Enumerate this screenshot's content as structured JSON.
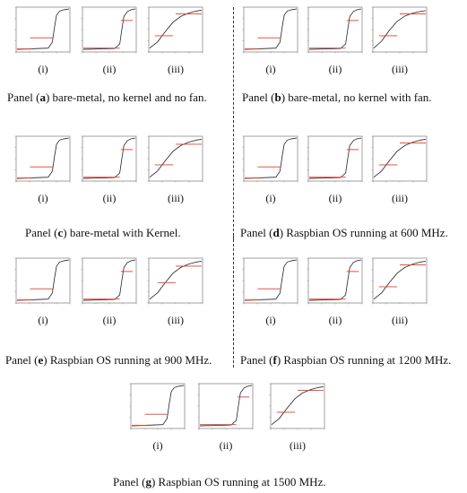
{
  "colors": {
    "curve": "#222222",
    "threshold": "#e23b2e",
    "frame": "#8a8a8a"
  },
  "sub_labels": [
    "(i)",
    "(ii)",
    "(iii)"
  ],
  "panels": [
    {
      "id": "a",
      "prefix": "Panel (",
      "letter": "a",
      "suffix": ") bare-metal, no kernel and no fan."
    },
    {
      "id": "b",
      "prefix": "Panel (",
      "letter": "b",
      "suffix": ") bare-metal, no kernel with fan."
    },
    {
      "id": "c",
      "prefix": "Panel (",
      "letter": "c",
      "suffix": ") bare-metal with Kernel."
    },
    {
      "id": "d",
      "prefix": "Panel (",
      "letter": "d",
      "suffix": ") Raspbian OS running at 600 MHz."
    },
    {
      "id": "e",
      "prefix": "Panel (",
      "letter": "e",
      "suffix": ") Raspbian OS running at 900 MHz."
    },
    {
      "id": "f",
      "prefix": "Panel (",
      "letter": "f",
      "suffix": ") Raspbian OS running at 1200 MHz."
    },
    {
      "id": "g",
      "prefix": "Panel (",
      "letter": "g",
      "suffix": ") Raspbian OS running at 1500 MHz."
    }
  ],
  "chart_data": [
    {
      "type": "line",
      "panel": "a",
      "sub": "(i)",
      "series": [
        {
          "x": [
            0,
            0.6,
            0.68,
            0.72,
            0.76,
            0.82,
            0.9,
            1
          ],
          "y": [
            0.02,
            0.05,
            0.2,
            0.55,
            0.85,
            0.95,
            0.98,
            1
          ]
        }
      ],
      "threshold": {
        "y": 0.3,
        "x": [
          0.25,
          0.7
        ]
      },
      "baseline_red": {
        "y": 0.03,
        "x": [
          0,
          0.3
        ]
      }
    },
    {
      "type": "line",
      "panel": "a",
      "sub": "(ii)",
      "series": [
        {
          "x": [
            0,
            0.6,
            0.7,
            0.74,
            0.78,
            0.85,
            0.92,
            1
          ],
          "y": [
            0.02,
            0.04,
            0.15,
            0.5,
            0.82,
            0.94,
            0.98,
            1
          ]
        }
      ],
      "threshold": {
        "y": 0.72,
        "x": [
          0.72,
          0.95
        ]
      },
      "baseline_red": {
        "y": 0.05,
        "x": [
          0,
          0.7
        ]
      }
    },
    {
      "type": "line",
      "panel": "a",
      "sub": "(iii)",
      "series": [
        {
          "x": [
            0,
            0.15,
            0.3,
            0.45,
            0.6,
            0.75,
            0.9,
            1
          ],
          "y": [
            0.05,
            0.2,
            0.45,
            0.68,
            0.82,
            0.9,
            0.95,
            0.97
          ]
        }
      ],
      "threshold": {
        "y": 0.35,
        "x": [
          0.1,
          0.45
        ]
      },
      "threshold2": {
        "y": 0.88,
        "x": [
          0.5,
          1
        ]
      }
    },
    {
      "type": "line",
      "panel": "b",
      "sub": "(i)",
      "series": [
        {
          "x": [
            0,
            0.6,
            0.68,
            0.72,
            0.76,
            0.82,
            0.9,
            1
          ],
          "y": [
            0.02,
            0.05,
            0.2,
            0.55,
            0.85,
            0.95,
            0.98,
            1
          ]
        }
      ],
      "threshold": {
        "y": 0.3,
        "x": [
          0.25,
          0.7
        ]
      },
      "baseline_red": {
        "y": 0.03,
        "x": [
          0,
          0.3
        ]
      }
    },
    {
      "type": "line",
      "panel": "b",
      "sub": "(ii)",
      "series": [
        {
          "x": [
            0,
            0.6,
            0.7,
            0.74,
            0.78,
            0.85,
            0.92,
            1
          ],
          "y": [
            0.02,
            0.04,
            0.15,
            0.5,
            0.82,
            0.94,
            0.98,
            1
          ]
        }
      ],
      "threshold": {
        "y": 0.72,
        "x": [
          0.72,
          0.95
        ]
      },
      "baseline_red": {
        "y": 0.05,
        "x": [
          0,
          0.7
        ]
      }
    },
    {
      "type": "line",
      "panel": "b",
      "sub": "(iii)",
      "series": [
        {
          "x": [
            0,
            0.15,
            0.3,
            0.45,
            0.6,
            0.75,
            0.9,
            1
          ],
          "y": [
            0.05,
            0.22,
            0.48,
            0.7,
            0.83,
            0.9,
            0.94,
            0.96
          ]
        }
      ],
      "threshold": {
        "y": 0.35,
        "x": [
          0.1,
          0.45
        ]
      },
      "threshold2": {
        "y": 0.88,
        "x": [
          0.5,
          1
        ]
      }
    },
    {
      "type": "line",
      "panel": "c",
      "sub": "(i)",
      "series": [
        {
          "x": [
            0,
            0.6,
            0.68,
            0.72,
            0.76,
            0.82,
            0.9,
            1
          ],
          "y": [
            0.02,
            0.05,
            0.2,
            0.55,
            0.85,
            0.95,
            0.98,
            1
          ]
        }
      ],
      "threshold": {
        "y": 0.3,
        "x": [
          0.25,
          0.7
        ]
      },
      "baseline_red": {
        "y": 0.03,
        "x": [
          0,
          0.3
        ]
      }
    },
    {
      "type": "line",
      "panel": "c",
      "sub": "(ii)",
      "series": [
        {
          "x": [
            0,
            0.6,
            0.7,
            0.74,
            0.78,
            0.85,
            0.92,
            1
          ],
          "y": [
            0.02,
            0.04,
            0.15,
            0.5,
            0.82,
            0.94,
            0.98,
            1
          ]
        }
      ],
      "threshold": {
        "y": 0.72,
        "x": [
          0.72,
          0.95
        ]
      },
      "baseline_red": {
        "y": 0.05,
        "x": [
          0,
          0.7
        ]
      }
    },
    {
      "type": "line",
      "panel": "c",
      "sub": "(iii)",
      "series": [
        {
          "x": [
            0,
            0.15,
            0.3,
            0.45,
            0.6,
            0.75,
            0.9,
            1
          ],
          "y": [
            0.05,
            0.2,
            0.45,
            0.68,
            0.82,
            0.9,
            0.95,
            0.97
          ]
        }
      ],
      "threshold": {
        "y": 0.35,
        "x": [
          0.1,
          0.45
        ]
      },
      "threshold2": {
        "y": 0.85,
        "x": [
          0.5,
          1
        ]
      }
    },
    {
      "type": "line",
      "panel": "d",
      "sub": "(i)",
      "series": [
        {
          "x": [
            0,
            0.6,
            0.68,
            0.72,
            0.76,
            0.82,
            0.9,
            1
          ],
          "y": [
            0.02,
            0.05,
            0.2,
            0.55,
            0.85,
            0.95,
            0.98,
            1
          ]
        }
      ],
      "threshold": {
        "y": 0.3,
        "x": [
          0.25,
          0.7
        ]
      },
      "baseline_red": {
        "y": 0.03,
        "x": [
          0,
          0.3
        ]
      }
    },
    {
      "type": "line",
      "panel": "d",
      "sub": "(ii)",
      "series": [
        {
          "x": [
            0,
            0.6,
            0.7,
            0.74,
            0.78,
            0.85,
            0.92,
            1
          ],
          "y": [
            0.02,
            0.04,
            0.15,
            0.5,
            0.82,
            0.94,
            0.98,
            1
          ]
        }
      ],
      "threshold": {
        "y": 0.72,
        "x": [
          0.72,
          0.95
        ]
      },
      "baseline_red": {
        "y": 0.05,
        "x": [
          0,
          0.7
        ]
      }
    },
    {
      "type": "line",
      "panel": "d",
      "sub": "(iii)",
      "series": [
        {
          "x": [
            0,
            0.15,
            0.3,
            0.45,
            0.6,
            0.75,
            0.9,
            1
          ],
          "y": [
            0.05,
            0.2,
            0.45,
            0.68,
            0.82,
            0.9,
            0.95,
            0.97
          ]
        }
      ],
      "threshold": {
        "y": 0.35,
        "x": [
          0.1,
          0.45
        ]
      },
      "threshold2": {
        "y": 0.88,
        "x": [
          0.5,
          1
        ]
      }
    },
    {
      "type": "line",
      "panel": "e",
      "sub": "(i)",
      "series": [
        {
          "x": [
            0,
            0.6,
            0.68,
            0.72,
            0.76,
            0.82,
            0.9,
            1
          ],
          "y": [
            0.02,
            0.05,
            0.2,
            0.55,
            0.85,
            0.95,
            0.98,
            1
          ]
        }
      ],
      "threshold": {
        "y": 0.3,
        "x": [
          0.25,
          0.7
        ]
      },
      "baseline_red": {
        "y": 0.03,
        "x": [
          0,
          0.3
        ]
      }
    },
    {
      "type": "line",
      "panel": "e",
      "sub": "(ii)",
      "series": [
        {
          "x": [
            0,
            0.6,
            0.7,
            0.74,
            0.78,
            0.85,
            0.92,
            1
          ],
          "y": [
            0.02,
            0.04,
            0.15,
            0.5,
            0.82,
            0.94,
            0.98,
            1
          ]
        }
      ],
      "threshold": {
        "y": 0.72,
        "x": [
          0.72,
          0.95
        ]
      },
      "baseline_red": {
        "y": 0.05,
        "x": [
          0,
          0.7
        ]
      }
    },
    {
      "type": "line",
      "panel": "e",
      "sub": "(iii)",
      "series": [
        {
          "x": [
            0,
            0.15,
            0.3,
            0.45,
            0.6,
            0.75,
            0.9,
            1
          ],
          "y": [
            0.05,
            0.2,
            0.45,
            0.68,
            0.82,
            0.9,
            0.95,
            0.97
          ]
        }
      ],
      "threshold": {
        "y": 0.45,
        "x": [
          0.15,
          0.5
        ]
      },
      "threshold2": {
        "y": 0.85,
        "x": [
          0.5,
          1
        ]
      }
    },
    {
      "type": "line",
      "panel": "f",
      "sub": "(i)",
      "series": [
        {
          "x": [
            0,
            0.6,
            0.68,
            0.72,
            0.76,
            0.82,
            0.9,
            1
          ],
          "y": [
            0.02,
            0.05,
            0.2,
            0.55,
            0.85,
            0.95,
            0.98,
            1
          ]
        }
      ],
      "threshold": {
        "y": 0.3,
        "x": [
          0.25,
          0.7
        ]
      },
      "baseline_red": {
        "y": 0.03,
        "x": [
          0,
          0.3
        ]
      }
    },
    {
      "type": "line",
      "panel": "f",
      "sub": "(ii)",
      "series": [
        {
          "x": [
            0,
            0.6,
            0.7,
            0.74,
            0.78,
            0.85,
            0.92,
            1
          ],
          "y": [
            0.02,
            0.04,
            0.15,
            0.5,
            0.82,
            0.94,
            0.98,
            1
          ]
        }
      ],
      "threshold": {
        "y": 0.72,
        "x": [
          0.72,
          0.95
        ]
      },
      "baseline_red": {
        "y": 0.05,
        "x": [
          0,
          0.7
        ]
      }
    },
    {
      "type": "line",
      "panel": "f",
      "sub": "(iii)",
      "series": [
        {
          "x": [
            0,
            0.15,
            0.3,
            0.45,
            0.6,
            0.75,
            0.9,
            1
          ],
          "y": [
            0.05,
            0.2,
            0.45,
            0.68,
            0.82,
            0.9,
            0.95,
            0.97
          ]
        }
      ],
      "threshold": {
        "y": 0.35,
        "x": [
          0.1,
          0.45
        ]
      },
      "threshold2": {
        "y": 0.88,
        "x": [
          0.5,
          1
        ]
      }
    },
    {
      "type": "line",
      "panel": "g",
      "sub": "(i)",
      "series": [
        {
          "x": [
            0,
            0.6,
            0.68,
            0.72,
            0.76,
            0.82,
            0.9,
            1
          ],
          "y": [
            0.02,
            0.05,
            0.2,
            0.55,
            0.85,
            0.95,
            0.98,
            1
          ]
        }
      ],
      "threshold": {
        "y": 0.3,
        "x": [
          0.25,
          0.7
        ]
      },
      "baseline_red": {
        "y": 0.03,
        "x": [
          0,
          0.3
        ]
      }
    },
    {
      "type": "line",
      "panel": "g",
      "sub": "(ii)",
      "series": [
        {
          "x": [
            0,
            0.6,
            0.7,
            0.74,
            0.78,
            0.85,
            0.92,
            1
          ],
          "y": [
            0.02,
            0.04,
            0.15,
            0.5,
            0.82,
            0.94,
            0.98,
            1
          ]
        }
      ],
      "threshold": {
        "y": 0.72,
        "x": [
          0.72,
          0.95
        ]
      },
      "baseline_red": {
        "y": 0.05,
        "x": [
          0,
          0.7
        ]
      }
    },
    {
      "type": "line",
      "panel": "g",
      "sub": "(iii)",
      "series": [
        {
          "x": [
            0,
            0.15,
            0.3,
            0.45,
            0.6,
            0.75,
            0.9,
            1
          ],
          "y": [
            0.05,
            0.2,
            0.45,
            0.68,
            0.82,
            0.9,
            0.95,
            0.97
          ]
        }
      ],
      "threshold": {
        "y": 0.35,
        "x": [
          0.1,
          0.45
        ]
      },
      "threshold2": {
        "y": 0.88,
        "x": [
          0.5,
          1
        ]
      }
    }
  ]
}
